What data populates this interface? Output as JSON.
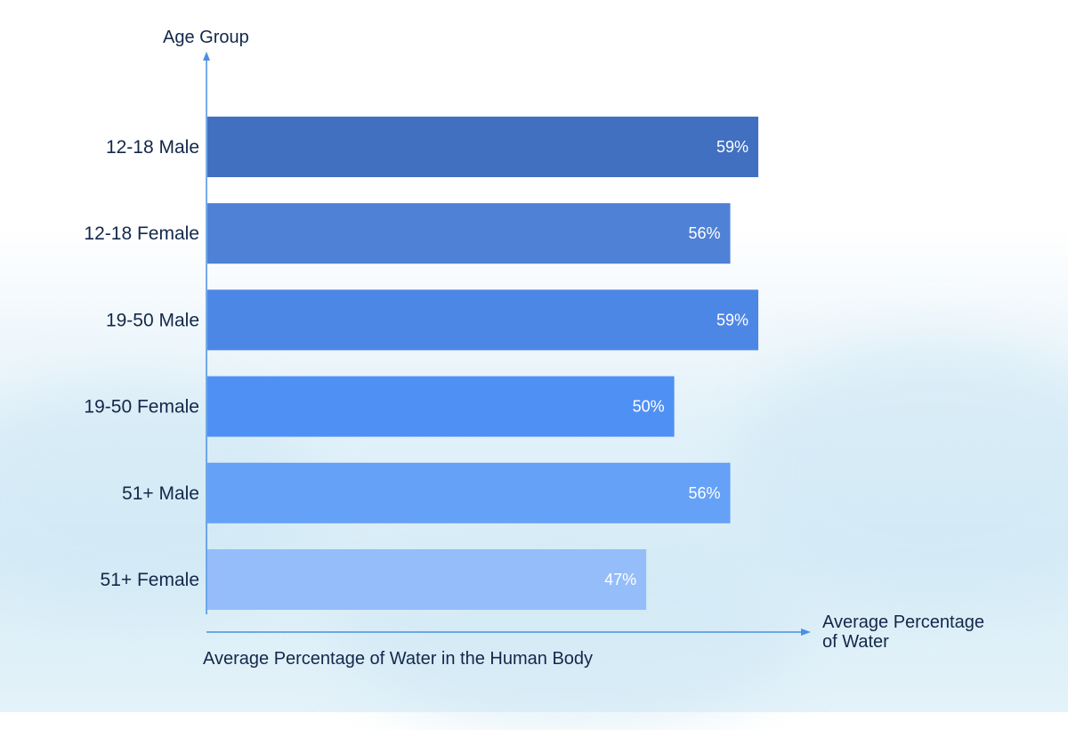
{
  "chart_data": {
    "type": "bar",
    "orientation": "horizontal",
    "categories": [
      "12-18 Male",
      "12-18 Female",
      "19-50 Male",
      "19-50 Female",
      "51+ Male",
      "51+ Female"
    ],
    "values": [
      59,
      56,
      59,
      50,
      56,
      47
    ],
    "data_labels": [
      "59%",
      "56%",
      "59%",
      "50%",
      "56%",
      "47%"
    ],
    "bar_colors": [
      "#4270c0",
      "#4f82d6",
      "#4d87e6",
      "#4f90f4",
      "#66a1f8",
      "#95bdfa"
    ],
    "title": "Average Percentage of Water in the Human Body",
    "ylabel": "Age Group",
    "xlabel_lines": [
      "Average Percentage",
      "of Water"
    ],
    "xlim": [
      0,
      63
    ],
    "grid": false,
    "axis_color": "#4a90e2"
  }
}
